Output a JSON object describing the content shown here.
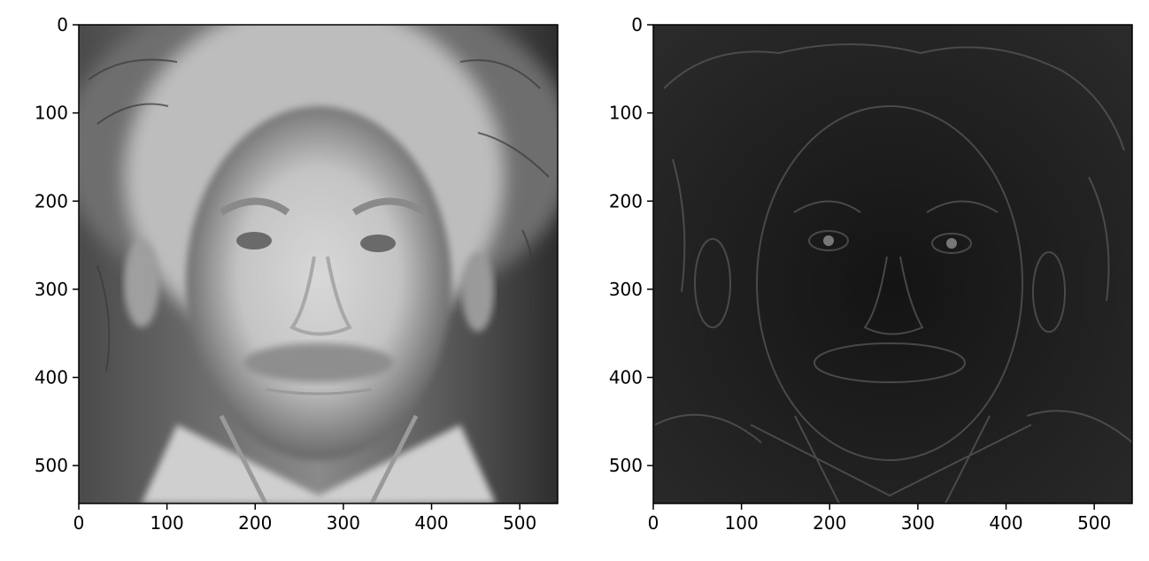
{
  "panels": [
    {
      "id": "left",
      "title": "",
      "x_ticks": [
        "0",
        "100",
        "200",
        "300",
        "400",
        "500"
      ],
      "y_ticks": [
        "0",
        "100",
        "200",
        "300",
        "400",
        "500"
      ],
      "xlim": [
        0,
        543
      ],
      "ylim": [
        543,
        0
      ],
      "image": {
        "kind": "low-pass filtered portrait",
        "tone": "light-gray"
      }
    },
    {
      "id": "right",
      "title": "",
      "x_ticks": [
        "0",
        "100",
        "200",
        "300",
        "400",
        "500"
      ],
      "y_ticks": [
        "0",
        "100",
        "200",
        "300",
        "400",
        "500"
      ],
      "xlim": [
        0,
        543
      ],
      "ylim": [
        543,
        0
      ],
      "image": {
        "kind": "high-pass filtered portrait",
        "tone": "dark-gray"
      }
    }
  ],
  "colors": {
    "axis": "#000000",
    "background": "#ffffff"
  }
}
